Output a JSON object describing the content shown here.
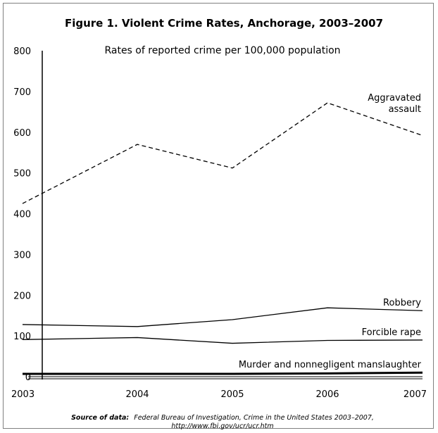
{
  "chart_data": {
    "type": "line",
    "title": "Figure 1. Violent Crime Rates, Anchorage, 2003–2007",
    "subtitle": "Rates of reported crime per 100,000 population",
    "x": [
      "2003",
      "2004",
      "2005",
      "2006",
      "2007"
    ],
    "ylim": [
      0,
      800
    ],
    "yticks": [
      0,
      100,
      200,
      300,
      400,
      500,
      600,
      700,
      800
    ],
    "grid": false,
    "series": [
      {
        "name": "Aggravated assault",
        "label_lines": [
          "Aggravated",
          "assault"
        ],
        "values": [
          425,
          570,
          512,
          672,
          592
        ],
        "style": "dashed",
        "color": "#000000"
      },
      {
        "name": "Robbery",
        "label_lines": [
          "Robbery"
        ],
        "values": [
          128,
          123,
          140,
          169,
          162
        ],
        "style": "solid",
        "color": "#000000"
      },
      {
        "name": "Forcible rape",
        "label_lines": [
          "Forcible rape"
        ],
        "values": [
          91,
          96,
          82,
          89,
          90
        ],
        "style": "solid",
        "color": "#000000"
      },
      {
        "name": "Murder and nonnegligent manslaughter",
        "label_lines": [
          "Murder and nonnegligent manslaughter"
        ],
        "values": [
          7,
          7,
          7,
          8,
          10
        ],
        "style": "solid-thick",
        "color": "#000000"
      }
    ],
    "source_label": "Source of data:",
    "source_text": "Federal Bureau of Investigation, Crime in the United States 2003–2007,",
    "source_url": "http://www.fbi.gov/ucr/ucr.htm"
  }
}
